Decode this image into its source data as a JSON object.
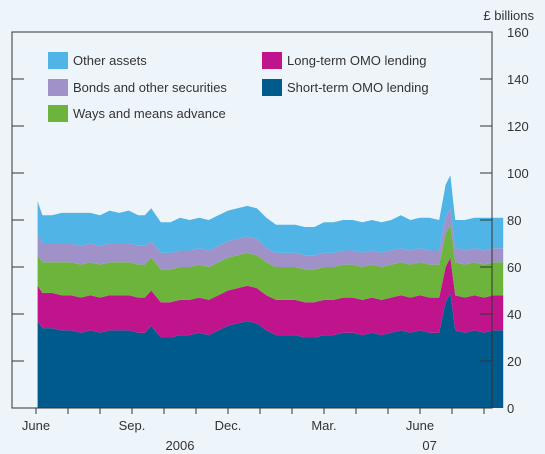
{
  "chart_data": {
    "type": "area",
    "stacked": true,
    "ylabel_unit": "£ billions",
    "ylim": [
      0,
      160
    ],
    "yticks": [
      0,
      20,
      40,
      60,
      80,
      100,
      120,
      140,
      160
    ],
    "x_month_labels": [
      {
        "label": "June",
        "t": 0
      },
      {
        "label": "Sep.",
        "t": 3
      },
      {
        "label": "Dec.",
        "t": 6
      },
      {
        "label": "Mar.",
        "t": 9
      },
      {
        "label": "June",
        "t": 12
      }
    ],
    "x_year_labels": [
      {
        "label": "2006",
        "t": 4.5
      },
      {
        "label": "07",
        "t": 12.3
      }
    ],
    "x_range": [
      0,
      15
    ],
    "x": [
      0.05,
      0.2,
      0.5,
      0.8,
      1.1,
      1.4,
      1.7,
      2.0,
      2.3,
      2.6,
      2.9,
      3.2,
      3.4,
      3.6,
      3.9,
      4.2,
      4.5,
      4.8,
      5.1,
      5.4,
      5.7,
      6.0,
      6.3,
      6.6,
      6.9,
      7.2,
      7.5,
      7.8,
      8.1,
      8.4,
      8.7,
      9.0,
      9.3,
      9.6,
      9.9,
      10.2,
      10.5,
      10.8,
      11.1,
      11.4,
      11.7,
      12.0,
      12.3,
      12.6,
      12.8,
      12.95,
      13.1,
      13.4,
      13.7,
      14.0,
      14.3,
      14.6
    ],
    "series": [
      {
        "name": "Short-term OMO lending",
        "color": "#005a8c",
        "values": [
          37,
          34,
          34,
          33,
          33,
          32,
          33,
          32,
          33,
          33,
          33,
          32,
          32,
          35,
          30,
          30,
          31,
          31,
          32,
          31,
          33,
          35,
          36,
          37,
          36,
          33,
          31,
          31,
          31,
          30,
          30,
          31,
          31,
          32,
          32,
          31,
          32,
          31,
          32,
          33,
          32,
          33,
          32,
          32,
          45,
          49,
          33,
          32,
          33,
          32,
          33,
          33
        ]
      },
      {
        "name": "Long-term OMO lending",
        "color": "#c0148c",
        "values": [
          15,
          15,
          15,
          15,
          15,
          15,
          15,
          15,
          15,
          15,
          15,
          15,
          15,
          15,
          15,
          15,
          15,
          15,
          15,
          15,
          15,
          15,
          15,
          15,
          15,
          15,
          15,
          15,
          15,
          15,
          15,
          15,
          15,
          15,
          15,
          15,
          15,
          15,
          15,
          15,
          15,
          15,
          15,
          15,
          15,
          15,
          15,
          15,
          15,
          15,
          15,
          15
        ]
      },
      {
        "name": "Ways and means advance",
        "color": "#6cb43c",
        "values": [
          13,
          13,
          13,
          14,
          14,
          14,
          14,
          14,
          14,
          14,
          14,
          14,
          14,
          14,
          14,
          14,
          14,
          14,
          14,
          14,
          14,
          14,
          14,
          14,
          14,
          14,
          14,
          14,
          14,
          14,
          14,
          14,
          14,
          14,
          14,
          14,
          14,
          14,
          14,
          14,
          14,
          14,
          14,
          14,
          14,
          14,
          14,
          14,
          14,
          14,
          14,
          14
        ]
      },
      {
        "name": "Bonds and other securities",
        "color": "#a092c8",
        "values": [
          9,
          8,
          8,
          8,
          8,
          8,
          8,
          8,
          8,
          8,
          8,
          8,
          8,
          7,
          7,
          7,
          7,
          7,
          7,
          7,
          7,
          7,
          7,
          7,
          7,
          6,
          6,
          6,
          6,
          6,
          6,
          6,
          6,
          6,
          6,
          6,
          6,
          6,
          6,
          6,
          6,
          6,
          6,
          6,
          7,
          7,
          6,
          6,
          6,
          6,
          6,
          6
        ]
      },
      {
        "name": "Other assets",
        "color": "#50b4e6",
        "values": [
          14,
          12,
          12,
          13,
          13,
          14,
          13,
          13,
          14,
          13,
          14,
          13,
          13,
          14,
          13,
          13,
          14,
          13,
          13,
          13,
          13,
          13,
          13,
          13,
          13,
          13,
          12,
          12,
          12,
          12,
          12,
          13,
          13,
          13,
          13,
          13,
          13,
          13,
          13,
          14,
          13,
          13,
          14,
          13,
          14,
          14,
          12,
          13,
          13,
          14,
          13,
          13
        ]
      }
    ],
    "legend": [
      {
        "label": "Other assets",
        "color": "#50b4e6"
      },
      {
        "label": "Bonds and other securities",
        "color": "#a092c8"
      },
      {
        "label": "Ways and means advance",
        "color": "#6cb43c"
      },
      {
        "label": "Long-term OMO lending",
        "color": "#c0148c"
      },
      {
        "label": "Short-term OMO lending",
        "color": "#005a8c"
      }
    ],
    "grid": false,
    "legend_position": "top-left"
  }
}
